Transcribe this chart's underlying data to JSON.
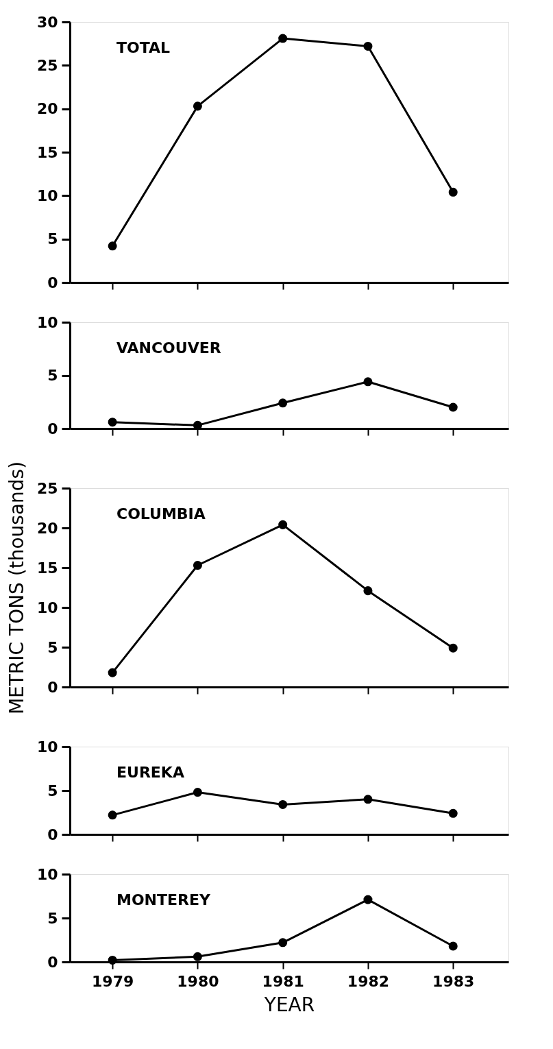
{
  "chart_data": [
    {
      "type": "line",
      "categories": [
        "1979",
        "1980",
        "1981",
        "1982",
        "1983"
      ],
      "ylim": [
        0,
        30
      ],
      "yticks": [
        0,
        5,
        10,
        15,
        20,
        25,
        30
      ],
      "tick_labels": "y",
      "marker": "circle",
      "grid": false,
      "series": [
        {
          "name": "TOTAL",
          "color": "#000000",
          "values": [
            4.2,
            20.3,
            28.1,
            27.2,
            10.4
          ]
        }
      ]
    },
    {
      "type": "line",
      "categories": [
        "1979",
        "1980",
        "1981",
        "1982",
        "1983"
      ],
      "ylim": [
        0,
        10
      ],
      "yticks": [
        0,
        5,
        10
      ],
      "tick_labels": "y",
      "marker": "circle",
      "grid": false,
      "series": [
        {
          "name": "VANCOUVER",
          "color": "#000000",
          "values": [
            0.6,
            0.3,
            2.4,
            4.4,
            2.0
          ]
        }
      ]
    },
    {
      "type": "line",
      "categories": [
        "1979",
        "1980",
        "1981",
        "1982",
        "1983"
      ],
      "ylim": [
        0,
        25
      ],
      "yticks": [
        0,
        5,
        10,
        15,
        20,
        25
      ],
      "ylabel": "METRIC TONS (thousands)",
      "tick_labels": "y",
      "marker": "circle",
      "grid": false,
      "series": [
        {
          "name": "COLUMBIA",
          "color": "#000000",
          "values": [
            1.8,
            15.3,
            20.4,
            12.1,
            4.9
          ]
        }
      ]
    },
    {
      "type": "line",
      "categories": [
        "1979",
        "1980",
        "1981",
        "1982",
        "1983"
      ],
      "ylim": [
        0,
        10
      ],
      "yticks": [
        0,
        5,
        10
      ],
      "tick_labels": "y",
      "marker": "circle",
      "grid": false,
      "series": [
        {
          "name": "EUREKA",
          "color": "#000000",
          "values": [
            2.2,
            4.8,
            3.4,
            4.0,
            2.4
          ]
        }
      ]
    },
    {
      "type": "line",
      "categories": [
        "1979",
        "1980",
        "1981",
        "1982",
        "1983"
      ],
      "ylim": [
        0,
        10
      ],
      "yticks": [
        0,
        5,
        10
      ],
      "xlabel": "YEAR",
      "marker": "circle",
      "grid": false,
      "series": [
        {
          "name": "MONTEREY",
          "color": "#000000",
          "values": [
            0.2,
            0.6,
            2.2,
            7.1,
            1.8
          ]
        }
      ]
    }
  ]
}
